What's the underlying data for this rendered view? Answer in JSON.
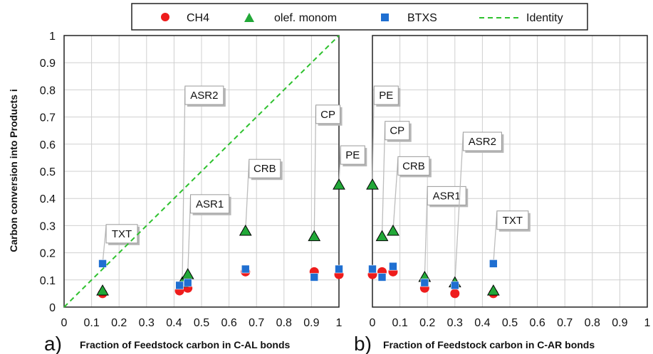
{
  "legend": {
    "items": [
      {
        "label": "CH4",
        "marker": "circle",
        "color": "#ee1c1c"
      },
      {
        "label": "olef. monom",
        "marker": "triangle",
        "color": "#22a838"
      },
      {
        "label": "BTXS",
        "marker": "square",
        "color": "#1f6fd1"
      },
      {
        "label": "Identity",
        "marker": "dashed-line",
        "color": "#2ec12e"
      }
    ]
  },
  "panels": [
    {
      "letter": "a)",
      "xlabel": "Fraction of Feedstock carbon in C-AL bonds"
    },
    {
      "letter": "b)",
      "xlabel": "Fraction of Feedstock carbon in C-AR bonds"
    }
  ],
  "chart_data": [
    {
      "type": "scatter",
      "panel": "a",
      "title": "",
      "xlabel": "Fraction of Feedstock carbon in C-AL bonds",
      "ylabel": "Carbon conversion into Products i",
      "xlim": [
        0,
        1
      ],
      "ylim": [
        0,
        1
      ],
      "xticks": [
        "0",
        "0.1",
        "0.2",
        "0.3",
        "0.4",
        "0.5",
        "0.6",
        "0.7",
        "0.8",
        "0.9",
        "1"
      ],
      "yticks": [
        "0",
        "0.1",
        "0.2",
        "0.3",
        "0.4",
        "0.5",
        "0.6",
        "0.7",
        "0.8",
        "0.9",
        "1"
      ],
      "grid": true,
      "series": [
        {
          "name": "CH4",
          "color": "#ee1c1c",
          "marker": "circle",
          "points": [
            [
              0.14,
              0.05
            ],
            [
              0.42,
              0.06
            ],
            [
              0.45,
              0.07
            ],
            [
              0.66,
              0.13
            ],
            [
              0.91,
              0.13
            ],
            [
              1.0,
              0.12
            ]
          ]
        },
        {
          "name": "olef. monom",
          "color": "#22a838",
          "marker": "triangle",
          "points": [
            [
              0.14,
              0.06
            ],
            [
              0.43,
              0.09
            ],
            [
              0.45,
              0.12
            ],
            [
              0.66,
              0.28
            ],
            [
              0.91,
              0.26
            ],
            [
              1.0,
              0.45
            ]
          ]
        },
        {
          "name": "BTXS",
          "color": "#1f6fd1",
          "marker": "square",
          "points": [
            [
              0.14,
              0.16
            ],
            [
              0.42,
              0.08
            ],
            [
              0.45,
              0.09
            ],
            [
              0.66,
              0.14
            ],
            [
              0.91,
              0.11
            ],
            [
              1.0,
              0.14
            ]
          ]
        },
        {
          "name": "Identity",
          "color": "#2ec12e",
          "marker": "dashed-line",
          "points": [
            [
              0,
              0
            ],
            [
              1,
              1
            ]
          ]
        }
      ],
      "annotations": [
        {
          "text": "TXT",
          "x": 0.14,
          "y": 0.16,
          "label_x": 0.21,
          "label_y": 0.27
        },
        {
          "text": "ASR1",
          "x": 0.45,
          "y": 0.12,
          "label_x": 0.53,
          "label_y": 0.38
        },
        {
          "text": "ASR2",
          "x": 0.43,
          "y": 0.09,
          "label_x": 0.51,
          "label_y": 0.78
        },
        {
          "text": "CRB",
          "x": 0.66,
          "y": 0.28,
          "label_x": 0.73,
          "label_y": 0.51
        },
        {
          "text": "CP",
          "x": 0.91,
          "y": 0.26,
          "label_x": 0.96,
          "label_y": 0.71
        },
        {
          "text": "PE",
          "x": 1.0,
          "y": 0.45,
          "label_x": 1.05,
          "label_y": 0.56
        }
      ]
    },
    {
      "type": "scatter",
      "panel": "b",
      "title": "",
      "xlabel": "Fraction of Feedstock carbon in C-AR bonds",
      "ylabel": "",
      "xlim": [
        0,
        1
      ],
      "ylim": [
        0,
        1
      ],
      "xticks": [
        "0",
        "0.1",
        "0.2",
        "0.3",
        "0.4",
        "0.5",
        "0.6",
        "0.7",
        "0.8",
        "0.9",
        "1"
      ],
      "grid": true,
      "series": [
        {
          "name": "CH4",
          "color": "#ee1c1c",
          "marker": "circle",
          "points": [
            [
              0.0,
              0.12
            ],
            [
              0.035,
              0.13
            ],
            [
              0.075,
              0.13
            ],
            [
              0.19,
              0.07
            ],
            [
              0.3,
              0.05
            ],
            [
              0.44,
              0.05
            ]
          ]
        },
        {
          "name": "olef. monom",
          "color": "#22a838",
          "marker": "triangle",
          "points": [
            [
              0.0,
              0.45
            ],
            [
              0.035,
              0.26
            ],
            [
              0.075,
              0.28
            ],
            [
              0.19,
              0.11
            ],
            [
              0.3,
              0.09
            ],
            [
              0.44,
              0.06
            ]
          ]
        },
        {
          "name": "BTXS",
          "color": "#1f6fd1",
          "marker": "square",
          "points": [
            [
              0.0,
              0.14
            ],
            [
              0.035,
              0.11
            ],
            [
              0.075,
              0.15
            ],
            [
              0.19,
              0.09
            ],
            [
              0.3,
              0.08
            ],
            [
              0.44,
              0.16
            ]
          ]
        }
      ],
      "annotations": [
        {
          "text": "PE",
          "x": 0.0,
          "y": 0.45,
          "label_x": 0.05,
          "label_y": 0.78
        },
        {
          "text": "CP",
          "x": 0.035,
          "y": 0.26,
          "label_x": 0.09,
          "label_y": 0.65
        },
        {
          "text": "CRB",
          "x": 0.075,
          "y": 0.28,
          "label_x": 0.15,
          "label_y": 0.52
        },
        {
          "text": "ASR1",
          "x": 0.19,
          "y": 0.11,
          "label_x": 0.27,
          "label_y": 0.41
        },
        {
          "text": "ASR2",
          "x": 0.3,
          "y": 0.09,
          "label_x": 0.4,
          "label_y": 0.61
        },
        {
          "text": "TXT",
          "x": 0.44,
          "y": 0.16,
          "label_x": 0.51,
          "label_y": 0.32
        }
      ]
    }
  ]
}
